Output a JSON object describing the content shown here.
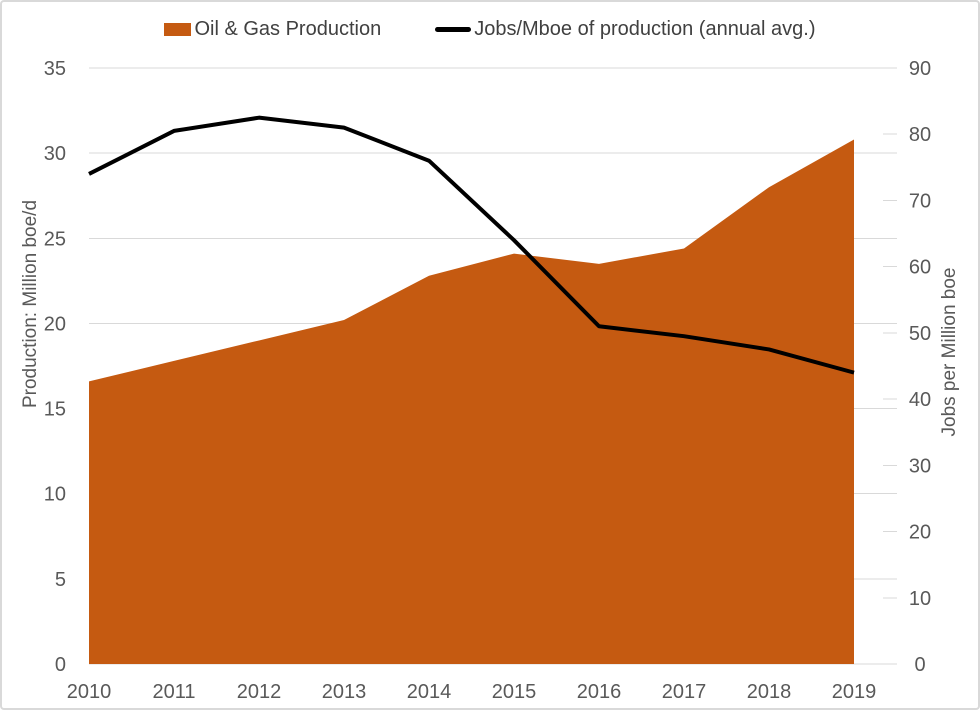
{
  "legend": {
    "items": [
      {
        "label": "Oil & Gas Production",
        "swatch": "area-swatch",
        "color": "#C55A11"
      },
      {
        "label": "Jobs/Mboe of production (annual avg.)",
        "swatch": "line-swatch",
        "color": "#000000"
      }
    ]
  },
  "chart_data": {
    "type": "combo",
    "categories": [
      "2010",
      "2011",
      "2012",
      "2013",
      "2014",
      "2015",
      "2016",
      "2017",
      "2018",
      "2019"
    ],
    "series": [
      {
        "name": "Oil & Gas Production",
        "type": "area",
        "axis": "left",
        "color": "#C55A11",
        "values": [
          16.6,
          17.8,
          19.0,
          20.2,
          22.8,
          24.1,
          23.5,
          24.4,
          28.0,
          30.8
        ]
      },
      {
        "name": "Jobs/Mboe of production (annual avg.)",
        "type": "line",
        "axis": "right",
        "color": "#000000",
        "values": [
          74,
          80.5,
          82.5,
          81,
          76,
          64,
          51,
          49.5,
          47.5,
          44
        ]
      }
    ],
    "left_axis": {
      "label": "Production: Million boe/d",
      "min": 0,
      "max": 35,
      "step": 5
    },
    "right_axis": {
      "label": "Jobs per Million boe",
      "min": 0,
      "max": 90,
      "step": 10
    },
    "x_axis": {
      "labels": [
        "2010",
        "2011",
        "2012",
        "2013",
        "2014",
        "2015",
        "2016",
        "2017",
        "2018",
        "2019"
      ]
    },
    "grid": true,
    "legend_position": "top",
    "colors": {
      "gridline": "#D9D9D9",
      "axis_text": "#595959",
      "legend_text": "#404040",
      "border": "#D9D9D9",
      "area_fill": "#C55A11",
      "line_stroke": "#000000"
    }
  }
}
